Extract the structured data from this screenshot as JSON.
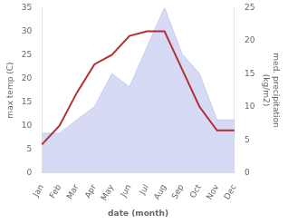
{
  "chart_data": {
    "type": "line",
    "categories": [
      "Jan",
      "Feb",
      "Mar",
      "Apr",
      "May",
      "Jun",
      "Jul",
      "Aug",
      "Sep",
      "Oct",
      "Nov",
      "Dec"
    ],
    "series": [
      {
        "type": "line",
        "color": "#b03030",
        "values": [
          6,
          10,
          17,
          23,
          25,
          29,
          30,
          30,
          22,
          14,
          9,
          9
        ]
      },
      {
        "type": "area",
        "color": "#c5caf0",
        "axis": "y2",
        "values": [
          6,
          6,
          8,
          10,
          15,
          13,
          19,
          25,
          18,
          15,
          8,
          8
        ]
      }
    ],
    "xlabel": "date (month)",
    "ylabel": "max temp (C)",
    "y2label": "med. precipitation\n(kg/m2)",
    "ylim": [
      0,
      35
    ],
    "yticks": [
      0,
      5,
      10,
      15,
      20,
      25,
      30,
      35
    ],
    "y2lim": [
      0,
      25
    ],
    "y2ticks": [
      0,
      5,
      10,
      15,
      20,
      25
    ],
    "grid": false
  }
}
